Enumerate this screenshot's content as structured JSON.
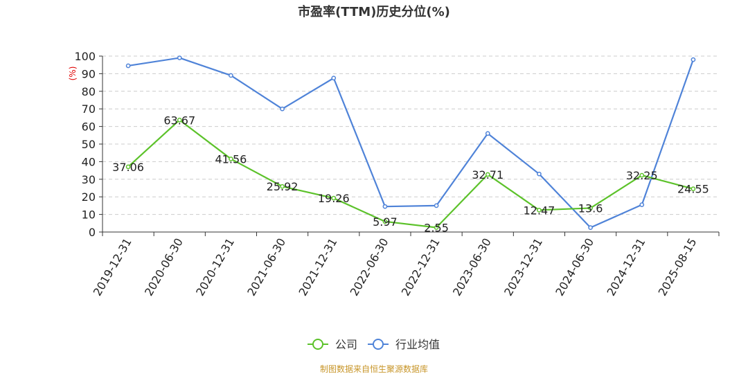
{
  "chart_data": {
    "type": "line",
    "title": "市盈率(TTM)历史分位(%)",
    "ylabel": "(%)",
    "ylim": [
      0,
      100
    ],
    "yticks": [
      0,
      10,
      20,
      30,
      40,
      50,
      60,
      70,
      80,
      90,
      100
    ],
    "categories": [
      "2019-12-31",
      "2020-06-30",
      "2020-12-31",
      "2021-06-30",
      "2021-12-31",
      "2022-06-30",
      "2022-12-31",
      "2023-06-30",
      "2023-12-31",
      "2024-06-30",
      "2024-12-31",
      "2025-08-15"
    ],
    "grid": "horizontal dashed",
    "legend_position": "bottom-center",
    "series": [
      {
        "name": "公司",
        "color": "#5cc22a",
        "values": [
          37.06,
          63.67,
          41.56,
          25.92,
          19.26,
          5.97,
          2.55,
          32.71,
          12.47,
          13.6,
          32.25,
          24.55
        ],
        "labels": [
          "37.06",
          "63.67",
          "41.56",
          "25.92",
          "19.26",
          "5.97",
          "2.55",
          "32.71",
          "12.47",
          "13.6",
          "32.25",
          "24.55"
        ]
      },
      {
        "name": "行业均值",
        "color": "#4f83d8",
        "values": [
          94.5,
          99.0,
          89.0,
          70.0,
          87.5,
          14.5,
          15.0,
          56.0,
          33.0,
          2.5,
          15.5,
          98.0
        ]
      }
    ]
  },
  "source_text": "制图数据来自恒生聚源数据库"
}
